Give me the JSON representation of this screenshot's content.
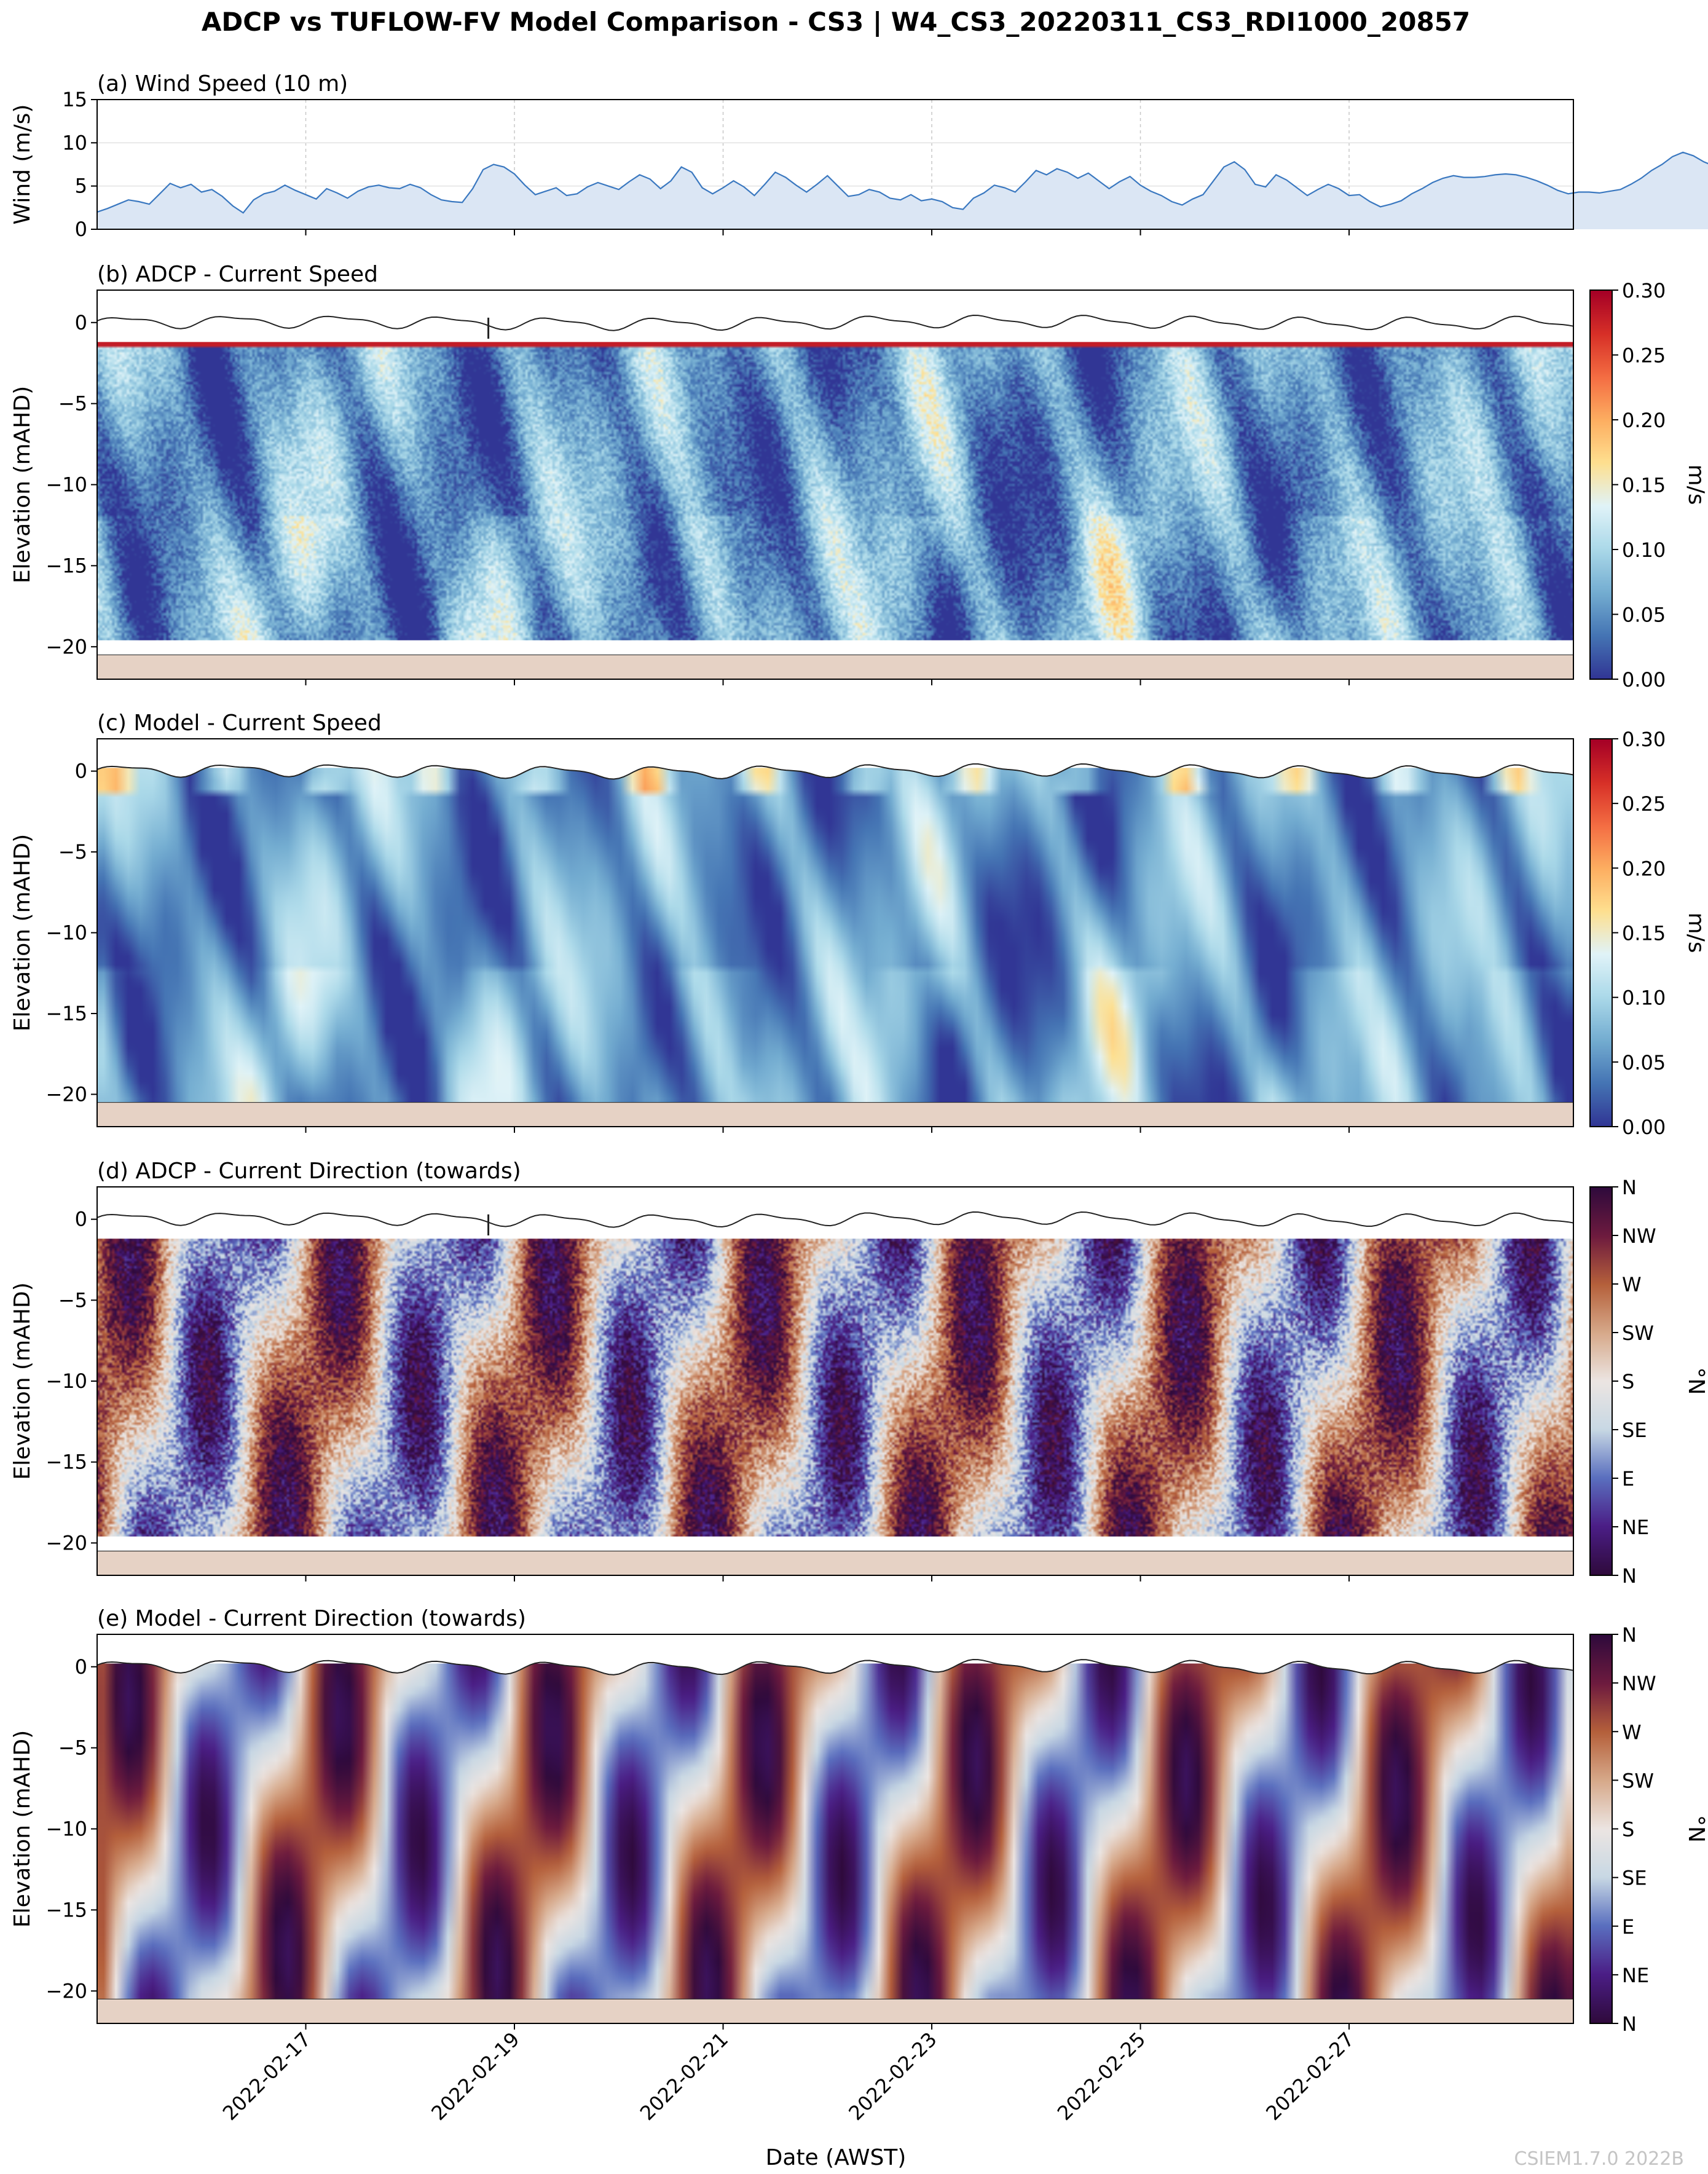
{
  "figure": {
    "title": "ADCP vs TUFLOW-FV Model Comparison - CS3 | W4_CS3_20220311_CS3_RDI1000_20857",
    "xlabel": "Date (AWST)",
    "watermark": "CSIEM1.7.0 2022B"
  },
  "colors": {
    "wind_line": "#3a78c0",
    "wind_fill": "#dbe6f4",
    "seabed": "#e6d2c5",
    "grid": "#c8c8c8",
    "speed_cmap": [
      "#313695",
      "#4575b4",
      "#74add1",
      "#abd9e9",
      "#e0f3f8",
      "#fee090",
      "#fdae61",
      "#f46d43",
      "#d73027",
      "#a50026"
    ],
    "direction_cmap": [
      "#2f0a3c",
      "#4b1e86",
      "#5a6fbf",
      "#c8d8e4",
      "#ece5e2",
      "#d7a98a",
      "#b5603b",
      "#6e1b3e",
      "#2f0a3c"
    ]
  },
  "chart_data": [
    {
      "id": "a",
      "type": "area",
      "title": "(a) Wind Speed (10 m)",
      "ylabel": "Wind (m/s)",
      "xlim": [
        0,
        14.15
      ],
      "ylim": [
        0,
        15
      ],
      "yticks": [
        0,
        5,
        10,
        15
      ],
      "grid": true,
      "x_start_label": "2022-02-15 00:00",
      "x_step_days": 0.1,
      "values": [
        2.0,
        2.4,
        2.9,
        3.4,
        3.2,
        2.9,
        4.1,
        5.3,
        4.8,
        5.2,
        4.3,
        4.6,
        3.8,
        2.7,
        1.9,
        3.4,
        4.1,
        4.4,
        5.1,
        4.5,
        4.0,
        3.5,
        4.7,
        4.2,
        3.6,
        4.4,
        4.9,
        5.1,
        4.8,
        4.7,
        5.2,
        4.8,
        4.0,
        3.4,
        3.2,
        3.1,
        4.7,
        6.9,
        7.5,
        7.2,
        6.4,
        5.1,
        4.0,
        4.4,
        4.8,
        3.9,
        4.1,
        4.9,
        5.4,
        5.0,
        4.6,
        5.5,
        6.3,
        5.8,
        4.7,
        5.6,
        7.2,
        6.6,
        4.8,
        4.1,
        4.8,
        5.6,
        4.9,
        3.9,
        5.2,
        6.6,
        6.0,
        5.1,
        4.3,
        5.2,
        6.2,
        5.0,
        3.8,
        4.0,
        4.6,
        4.3,
        3.6,
        3.4,
        4.0,
        3.3,
        3.5,
        3.2,
        2.5,
        2.3,
        3.6,
        4.2,
        5.1,
        4.8,
        4.3,
        5.5,
        6.8,
        6.3,
        7.0,
        6.6,
        5.9,
        6.5,
        5.6,
        4.7,
        5.5,
        6.1,
        5.1,
        4.4,
        3.9,
        3.2,
        2.8,
        3.5,
        4.0,
        5.6,
        7.2,
        7.8,
        6.9,
        5.2,
        4.9,
        6.3,
        5.7,
        4.8,
        3.9,
        4.6,
        5.2,
        4.7,
        3.9,
        4.0,
        3.2,
        2.6,
        2.9,
        3.3,
        4.1,
        4.7,
        5.4,
        5.9,
        6.2,
        6.0,
        6.0,
        6.1,
        6.3,
        6.4,
        6.3,
        6.0,
        5.6,
        5.1,
        4.5,
        4.1,
        4.3,
        4.3,
        4.2,
        4.4,
        4.6,
        5.2,
        5.9,
        6.8,
        7.5,
        8.4,
        8.9,
        8.5,
        7.8,
        7.3,
        6.8,
        6.6,
        6.8,
        7.2,
        6.5,
        6.2,
        6.1,
        6.4,
        6.6,
        6.9,
        7.0,
        7.2,
        7.5,
        7.6,
        7.4,
        6.9,
        7.5,
        7.9,
        8.3,
        7.9,
        7.6,
        7.1,
        6.6,
        6.2,
        5.6,
        5.9,
        6.2,
        5.4,
        5.9,
        6.3,
        5.3,
        4.6,
        5.0,
        5.8,
        5.1,
        3.9,
        2.9,
        1.8,
        0.6,
        2.5,
        3.7,
        4.9,
        4.1,
        3.6,
        4.2,
        5.2,
        4.6,
        4.9,
        4.1,
        4.6,
        4.3,
        5.3,
        6.1,
        5.6,
        4.8,
        5.1,
        5.7,
        6.4,
        7.1,
        7.8,
        8.1,
        7.6,
        7.0,
        6.9,
        7.3,
        6.6,
        6.2,
        6.9,
        7.6,
        7.1,
        6.8,
        6.6,
        6.7,
        6.9,
        7.4,
        8.6,
        9.5,
        10.3,
        10.6,
        9.7,
        8.9,
        8.6,
        8.1,
        7.6,
        7.0,
        6.7,
        6.1,
        5.9,
        5.5,
        5.6,
        6.0,
        5.5,
        5.2,
        4.6,
        5.1,
        6.0,
        6.8,
        7.2,
        6.4,
        5.7,
        5.2,
        6.4,
        5.8,
        4.5,
        3.6,
        2.9,
        3.4,
        4.6,
        5.1,
        4.6,
        6.3,
        7.8,
        7.5,
        6.1,
        6.5,
        7.2,
        6.6,
        6.1,
        5.9,
        6.2,
        6.3
      ]
    },
    {
      "id": "b",
      "type": "heatmap",
      "title": "(b) ADCP - Current Speed",
      "ylabel": "Elevation (mAHD)",
      "xlim": [
        0,
        14.15
      ],
      "ylim": [
        -22,
        2
      ],
      "yticks": [
        0,
        -5,
        -10,
        -15,
        -20
      ],
      "colorbar": {
        "label": "m/s",
        "min": 0.0,
        "max": 0.3,
        "ticks": [
          "0.00",
          "0.05",
          "0.10",
          "0.15",
          "0.20",
          "0.25",
          "0.30"
        ]
      },
      "data_top_m": -1.2,
      "data_bottom_m": -19.6,
      "seabed_m": [
        -22,
        -20.5
      ],
      "water_surface_line": true,
      "surface_gap_day": 3.75
    },
    {
      "id": "c",
      "type": "heatmap",
      "title": "(c) Model - Current Speed",
      "ylabel": "Elevation (mAHD)",
      "xlim": [
        0,
        14.15
      ],
      "ylim": [
        -22,
        2
      ],
      "yticks": [
        0,
        -5,
        -10,
        -15,
        -20
      ],
      "colorbar": {
        "label": "m/s",
        "min": 0.0,
        "max": 0.3,
        "ticks": [
          "0.00",
          "0.05",
          "0.10",
          "0.15",
          "0.20",
          "0.25",
          "0.30"
        ]
      },
      "data_top_m": 0.2,
      "data_bottom_m": -20.5,
      "seabed_m": [
        -22,
        -20.5
      ],
      "water_surface_line": true
    },
    {
      "id": "d",
      "type": "heatmap",
      "title": "(d) ADCP - Current Direction (towards)",
      "ylabel": "Elevation (mAHD)",
      "xlim": [
        0,
        14.15
      ],
      "ylim": [
        -22,
        2
      ],
      "yticks": [
        0,
        -5,
        -10,
        -15,
        -20
      ],
      "colorbar": {
        "label": "°N",
        "min": 0,
        "max": 360,
        "ticks": [
          "N",
          "NE",
          "E",
          "SE",
          "S",
          "SW",
          "W",
          "NW",
          "N"
        ]
      },
      "data_top_m": -1.2,
      "data_bottom_m": -19.6,
      "seabed_m": [
        -22,
        -20.5
      ],
      "water_surface_line": true,
      "surface_gap_day": 3.75
    },
    {
      "id": "e",
      "type": "heatmap",
      "title": "(e) Model - Current Direction (towards)",
      "ylabel": "Elevation (mAHD)",
      "xlim": [
        0,
        14.15
      ],
      "ylim": [
        -22,
        2
      ],
      "yticks": [
        0,
        -5,
        -10,
        -15,
        -20
      ],
      "colorbar": {
        "label": "°N",
        "min": 0,
        "max": 360,
        "ticks": [
          "N",
          "NE",
          "E",
          "SE",
          "S",
          "SW",
          "W",
          "NW",
          "N"
        ]
      },
      "data_top_m": 0.2,
      "data_bottom_m": -20.5,
      "seabed_m": [
        -22,
        -20.5
      ],
      "water_surface_line": true
    }
  ],
  "x_axis": {
    "ticks": [
      {
        "day": 2,
        "label": "2022-02-17"
      },
      {
        "day": 4,
        "label": "2022-02-19"
      },
      {
        "day": 6,
        "label": "2022-02-21"
      },
      {
        "day": 8,
        "label": "2022-02-23"
      },
      {
        "day": 10,
        "label": "2022-02-25"
      },
      {
        "day": 12,
        "label": "2022-02-27"
      }
    ]
  }
}
